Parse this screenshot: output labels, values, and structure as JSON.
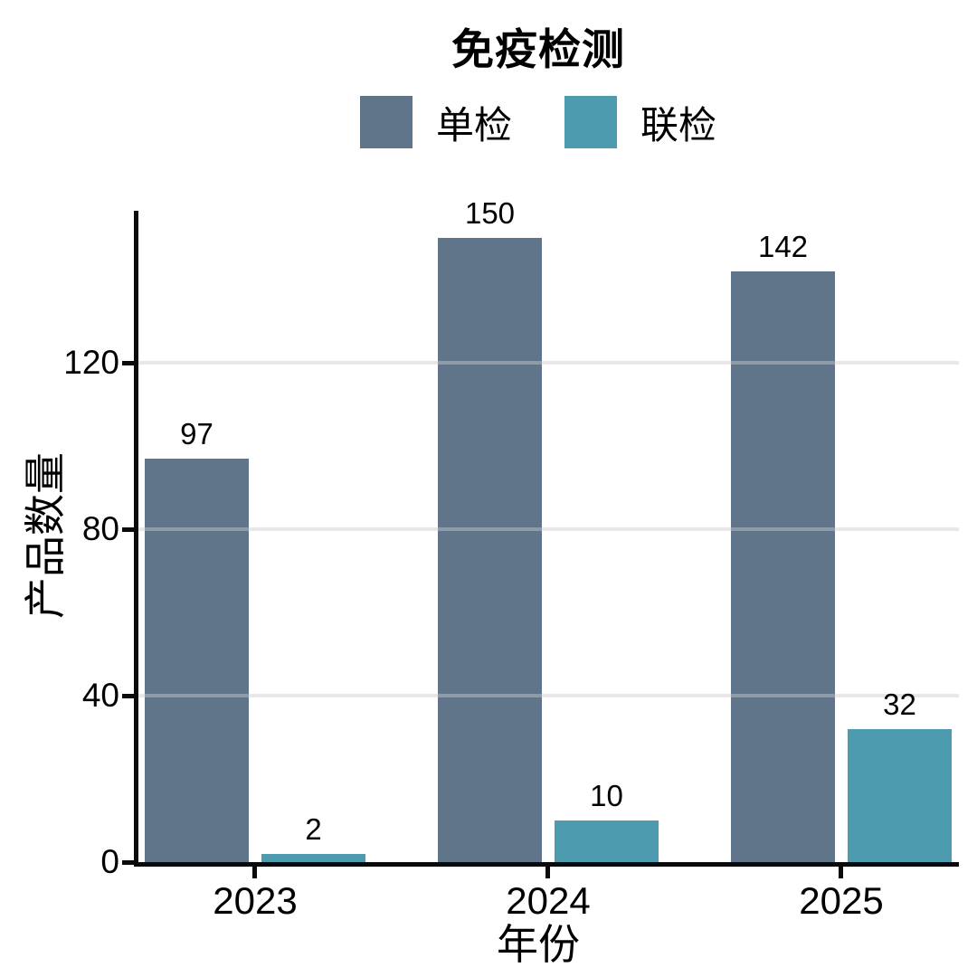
{
  "title": "免疫检测",
  "axes": {
    "x_title": "年份",
    "y_title": "产品数量"
  },
  "chart_data": {
    "type": "bar",
    "title": "免疫检测",
    "xlabel": "年份",
    "ylabel": "产品数量",
    "categories": [
      "2023",
      "2024",
      "2025"
    ],
    "series": [
      {
        "name": "单检",
        "color": "#60748a",
        "values": [
          97,
          150,
          142
        ]
      },
      {
        "name": "联检",
        "color": "#4d9bae",
        "values": [
          2,
          10,
          32
        ]
      }
    ],
    "yticks": [
      0,
      40,
      80,
      120
    ],
    "ylim": [
      0,
      156
    ],
    "bar_value_labels": true,
    "grid": "horizontal-major",
    "gridline_color": "#e8e8e8",
    "axis_color": "#0a0a0a",
    "legend_position": "top-center"
  }
}
